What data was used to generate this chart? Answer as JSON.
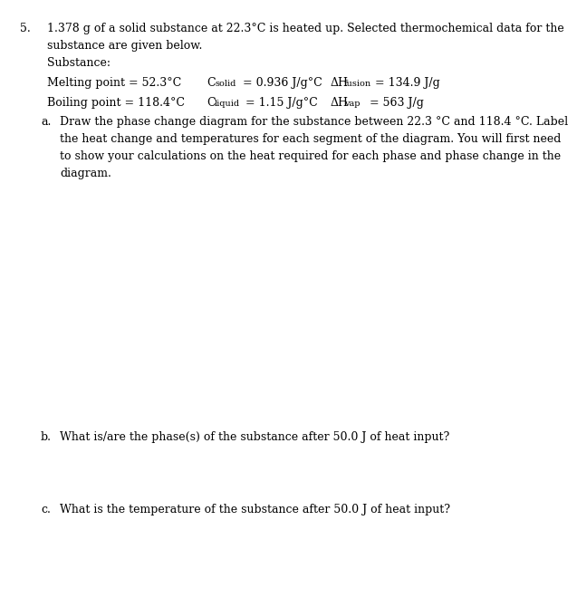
{
  "bg_color": "#ffffff",
  "title_line1": "1.378 g of a solid substance at 22.3°C is heated up. Selected thermochemical data for the",
  "title_line2": "substance are given below.",
  "substance_label": "Substance:",
  "col1_row1": "Melting point = 52.3°C",
  "col1_row2": "Boiling point = 118.4°C",
  "col3_row1_post": " = 134.9 J/g",
  "col3_row2_post": "  = 563 J/g",
  "part_a_line1": "Draw the phase change diagram for the substance between 22.3 °C and 118.4 °C. Label",
  "part_a_line2": "the heat change and temperatures for each segment of the diagram. You will first need",
  "part_a_line3": "to show your calculations on the heat required for each phase and phase change in the",
  "part_a_line4": "diagram.",
  "part_b_text": "What is/are the phase(s) of the substance after 50.0 J of heat input?",
  "part_c_text": "What is the temperature of the substance after 50.0 J of heat input?",
  "font_size_main": 9.0,
  "font_size_sub": 7.0,
  "font_family": "DejaVu Serif",
  "text_color": "#000000"
}
